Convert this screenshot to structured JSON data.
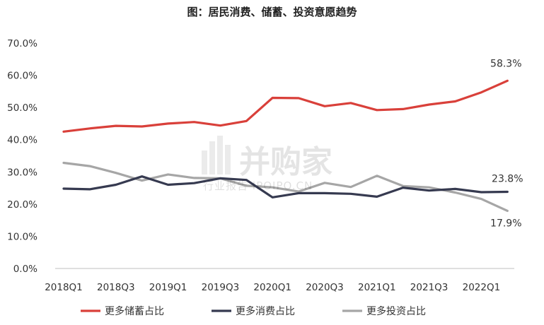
{
  "chart_data": {
    "type": "line",
    "title": "图：居民消费、储蓄、投资意愿趋势",
    "xlabel": "",
    "ylabel": "",
    "ylim": [
      0,
      70
    ],
    "yticks": [
      "0.0%",
      "10.0%",
      "20.0%",
      "30.0%",
      "40.0%",
      "50.0%",
      "60.0%",
      "70.0%"
    ],
    "x": [
      "2018Q1",
      "2018Q2",
      "2018Q3",
      "2018Q4",
      "2019Q1",
      "2019Q2",
      "2019Q3",
      "2019Q4",
      "2020Q1",
      "2020Q2",
      "2020Q3",
      "2020Q4",
      "2021Q1",
      "2021Q2",
      "2021Q3",
      "2021Q4",
      "2022Q1",
      "2022Q2"
    ],
    "xtick_labels": [
      "2018Q1",
      "2018Q3",
      "2019Q1",
      "2019Q3",
      "2020Q1",
      "2020Q3",
      "2021Q1",
      "2021Q3",
      "2022Q1"
    ],
    "series": [
      {
        "name": "更多储蓄占比",
        "color": "#d9403a",
        "values": [
          42.5,
          43.5,
          44.3,
          44.1,
          45.0,
          45.5,
          44.4,
          45.8,
          53.0,
          52.9,
          50.4,
          51.4,
          49.2,
          49.5,
          50.9,
          51.9,
          54.7,
          58.3
        ],
        "end_label": "58.3%"
      },
      {
        "name": "更多消费占比",
        "color": "#363a50",
        "values": [
          24.8,
          24.6,
          26.0,
          28.6,
          26.0,
          26.5,
          28.0,
          27.5,
          22.1,
          23.4,
          23.4,
          23.2,
          22.3,
          25.1,
          24.2,
          24.7,
          23.7,
          23.8
        ],
        "end_label": "23.8%"
      },
      {
        "name": "更多投资占比",
        "color": "#a6a6a6",
        "values": [
          32.8,
          31.8,
          29.7,
          27.3,
          29.2,
          28.1,
          28.0,
          25.7,
          25.2,
          23.9,
          26.6,
          25.3,
          28.8,
          25.6,
          25.2,
          23.6,
          21.6,
          17.9
        ],
        "end_label": "17.9%"
      }
    ],
    "grid": false,
    "legend": "bottom"
  },
  "watermark": {
    "main": "并购家",
    "sub": "行业报告 IPOIPO.CN"
  }
}
